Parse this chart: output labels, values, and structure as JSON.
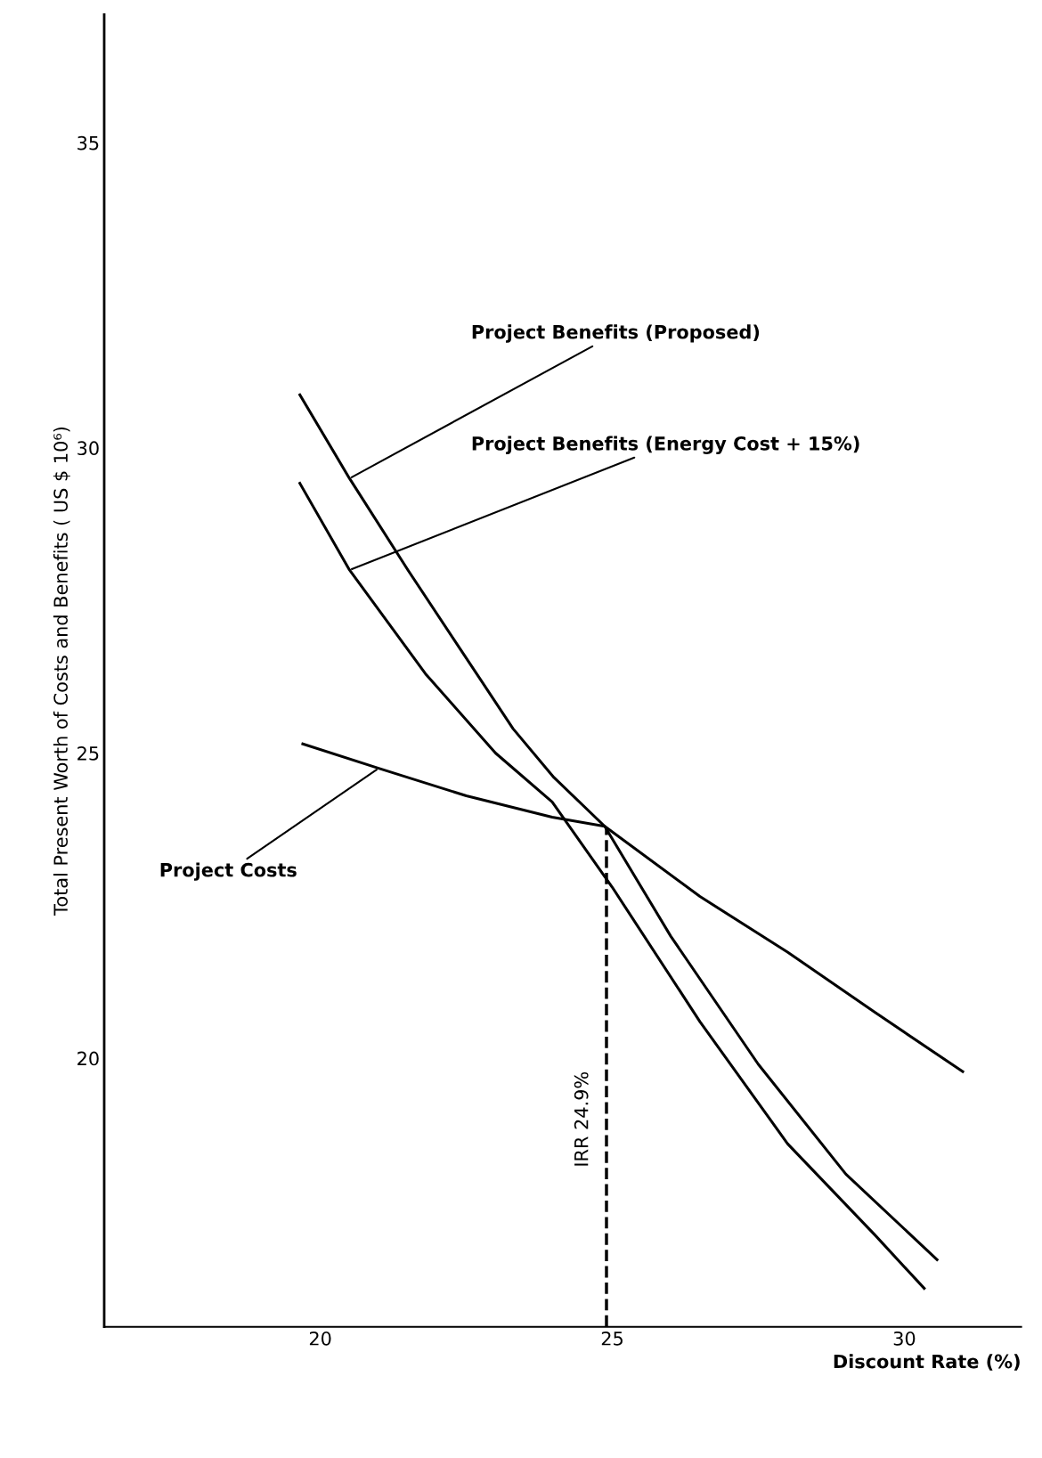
{
  "chart_data": {
    "type": "line",
    "xlabel": "Discount Rate (%)",
    "ylabel": "Total Present Worth of Costs and Benefits ( US $ 10⁶)",
    "xlim": [
      16.3,
      32
    ],
    "ylim": [
      15.6,
      37.1
    ],
    "xticks": [
      20,
      25,
      30
    ],
    "yticks": [
      20,
      25,
      30,
      35
    ],
    "grid": false,
    "marker": "none",
    "line_style": "solid",
    "series": [
      {
        "name": "Project Benefits (Proposed)",
        "color": "#000000",
        "x": [
          19.65,
          20.5,
          21.5,
          22.4,
          23.3,
          24.0,
          24.87,
          26.0,
          27.5,
          29.0,
          30.56
        ],
        "values": [
          30.87,
          29.5,
          28.0,
          26.7,
          25.4,
          24.6,
          23.8,
          22.0,
          19.9,
          18.1,
          16.7
        ]
      },
      {
        "name": "Project Benefits (Energy Cost + 15%)",
        "color": "#000000",
        "x": [
          19.65,
          20.5,
          21.8,
          23.0,
          23.97,
          25.0,
          26.5,
          28.0,
          29.5,
          30.34
        ],
        "values": [
          29.42,
          28.0,
          26.3,
          25.0,
          24.2,
          22.8,
          20.6,
          18.6,
          17.1,
          16.23
        ]
      },
      {
        "name": "Project Costs",
        "color": "#000000",
        "x": [
          19.7,
          21.0,
          22.5,
          23.97,
          24.87,
          26.5,
          28.0,
          29.5,
          31.0
        ],
        "values": [
          25.15,
          24.75,
          24.3,
          23.95,
          23.8,
          22.65,
          21.74,
          20.75,
          19.78
        ]
      }
    ],
    "ref_lines": [
      {
        "axis": "x",
        "value": 24.9,
        "label": "IRR 24.9%",
        "line_style": "dashed",
        "color": "#000000"
      }
    ]
  }
}
